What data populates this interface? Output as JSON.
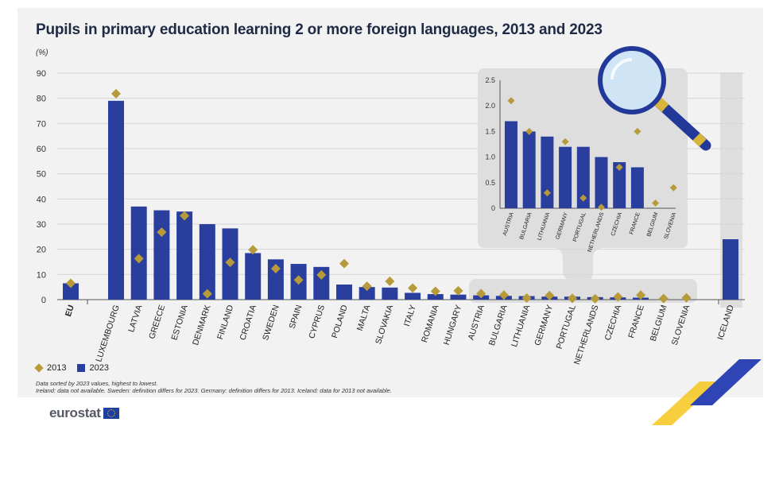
{
  "title": "Pupils in primary education learning 2 or more foreign languages, 2013 and 2023",
  "unit": "(%)",
  "legend": {
    "y2013": "2013",
    "y2023": "2023"
  },
  "notes": {
    "line1": "Data sorted by 2023 values, highest to lowest.",
    "line2": "Ireland: data not available. Sweden: definition differs for 2023. Germany: definition differs for 2013. Iceland: data for 2013 not available."
  },
  "logo": {
    "text": "eurostat"
  },
  "colors": {
    "bar": "#2a3e9e",
    "marker": "#b79a3a",
    "panel": "#f2f2f2",
    "highlight": "#dedede"
  },
  "chart_data": [
    {
      "type": "bar",
      "title": "Pupils in primary education learning 2 or more foreign languages, 2013 and 2023",
      "ylabel": "(%)",
      "ylim": [
        0,
        90
      ],
      "yticks": [
        0,
        10,
        20,
        30,
        40,
        50,
        60,
        70,
        80,
        90
      ],
      "grid": true,
      "categories": [
        "EU",
        "LUXEMBOURG",
        "LATVIA",
        "GREECE",
        "ESTONIA",
        "DENMARK",
        "FINLAND",
        "CROATIA",
        "SWEDEN",
        "SPAIN",
        "CYPRUS",
        "POLAND",
        "MALTA",
        "SLOVAKIA",
        "ITALY",
        "ROMANIA",
        "HUNGARY",
        "AUSTRIA",
        "BULGARIA",
        "LITHUANIA",
        "GERMANY",
        "PORTUGAL",
        "NETHERLANDS",
        "CZECHIA",
        "FRANCE",
        "BELGIUM",
        "SLOVENIA",
        "ICELAND"
      ],
      "series": [
        {
          "name": "2023",
          "kind": "bar",
          "values": [
            6.5,
            79,
            37,
            35.5,
            35,
            30,
            28.3,
            18.5,
            16,
            14.2,
            13,
            6,
            5,
            4.8,
            2.7,
            2.2,
            2,
            1.7,
            1.5,
            1.4,
            1.2,
            1.2,
            1,
            0.9,
            0.8,
            0,
            0,
            24
          ]
        },
        {
          "name": "2013",
          "kind": "marker",
          "values": [
            6.2,
            81.5,
            16,
            26.5,
            33,
            2,
            14.5,
            19.5,
            12,
            7.5,
            9.5,
            14,
            5,
            7,
            4.3,
            3,
            3.2,
            2.1,
            1.5,
            0.3,
            1.3,
            0.2,
            0.02,
            0.8,
            1.5,
            0.1,
            0.4,
            null
          ]
        }
      ]
    },
    {
      "type": "bar",
      "title": "",
      "ylim": [
        0,
        2.5
      ],
      "yticks": [
        "0",
        "0.5",
        "1.0",
        "1.5",
        "2.0",
        "2.5"
      ],
      "grid": false,
      "categories": [
        "AUSTRIA",
        "BULGARIA",
        "LITHUANIA",
        "GERMANY",
        "PORTUGAL",
        "NETHERLANDS",
        "CZECHIA",
        "FRANCE",
        "BELGIUM",
        "SLOVENIA"
      ],
      "series": [
        {
          "name": "2023",
          "kind": "bar",
          "values": [
            1.7,
            1.5,
            1.4,
            1.2,
            1.2,
            1.0,
            0.9,
            0.8,
            0,
            0
          ]
        },
        {
          "name": "2013",
          "kind": "marker",
          "values": [
            2.1,
            1.5,
            0.3,
            1.3,
            0.2,
            0.02,
            0.8,
            1.5,
            0.1,
            0.4
          ]
        }
      ]
    }
  ]
}
